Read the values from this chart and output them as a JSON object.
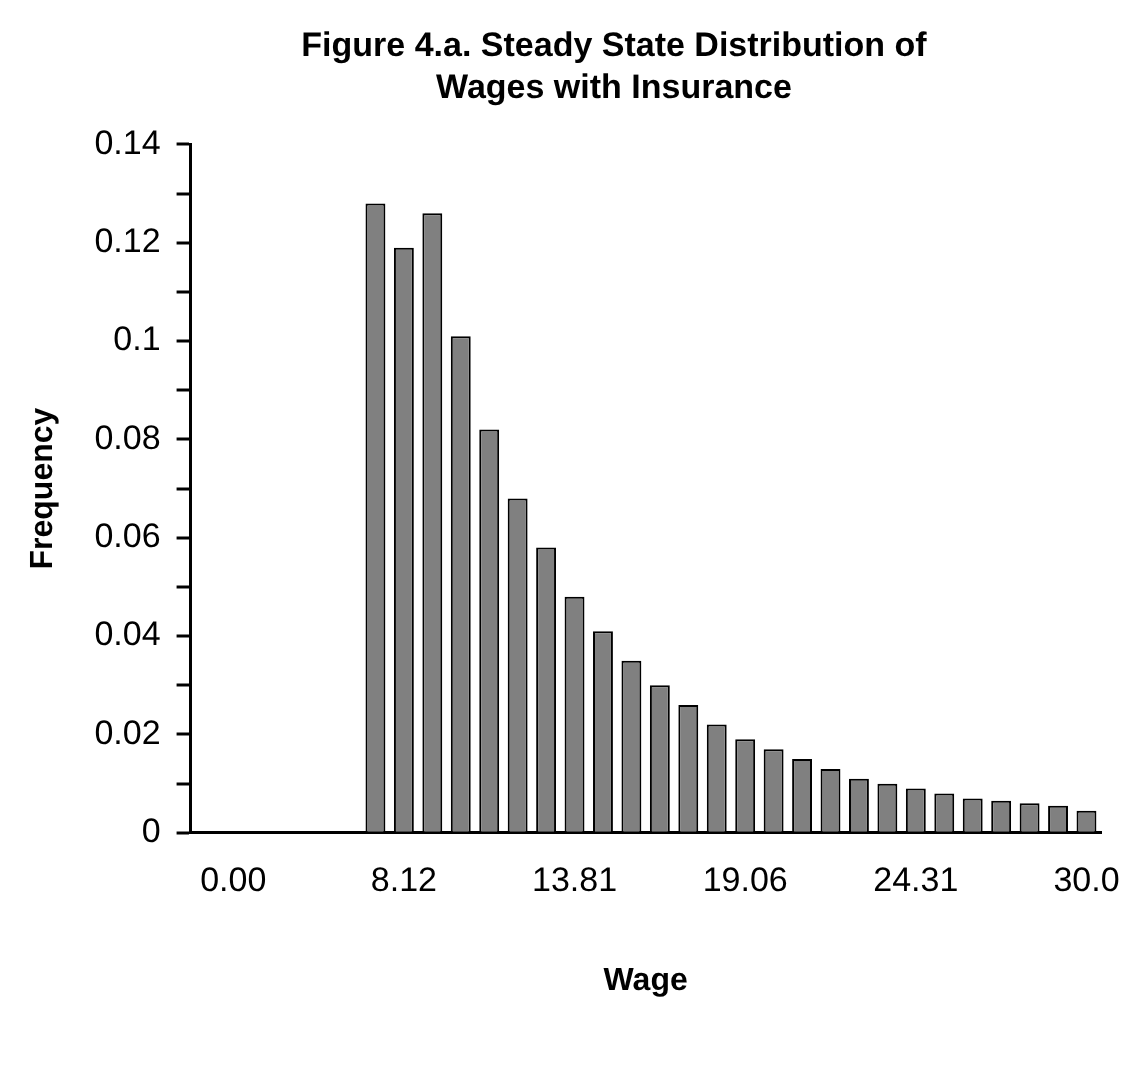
{
  "chart_data": {
    "type": "bar",
    "title": "Figure 4.a. Steady State Distribution of Wages with Insurance",
    "xlabel": "Wage",
    "ylabel": "Frequency",
    "categories": [
      null,
      "0.00",
      null,
      null,
      null,
      null,
      null,
      "8.12",
      null,
      null,
      null,
      null,
      null,
      "13.81",
      null,
      null,
      null,
      null,
      null,
      "19.06",
      null,
      null,
      null,
      null,
      null,
      "24.31",
      null,
      null,
      null,
      null,
      null,
      "30.0"
    ],
    "values": [
      null,
      null,
      null,
      null,
      null,
      null,
      0.128,
      0.119,
      0.126,
      0.101,
      0.082,
      0.068,
      0.058,
      0.048,
      0.041,
      0.035,
      0.03,
      0.026,
      0.022,
      0.019,
      0.017,
      0.015,
      0.013,
      0.011,
      0.01,
      0.009,
      0.008,
      0.007,
      0.0065,
      0.006,
      0.0055,
      0.0045
    ],
    "color": "#808080",
    "ylim": [
      0,
      0.14
    ],
    "yticks": [
      0,
      {
        "value": 0.01,
        "label": null
      },
      0.02,
      {
        "value": 0.03,
        "label": null
      },
      0.04,
      {
        "value": 0.05,
        "label": null
      },
      0.06,
      {
        "value": 0.07,
        "label": null
      },
      0.08,
      {
        "value": 0.09,
        "label": null
      },
      0.1,
      {
        "value": 0.11,
        "label": null
      },
      0.12,
      {
        "value": 0.13,
        "label": null
      },
      0.14
    ],
    "grid": false
  }
}
